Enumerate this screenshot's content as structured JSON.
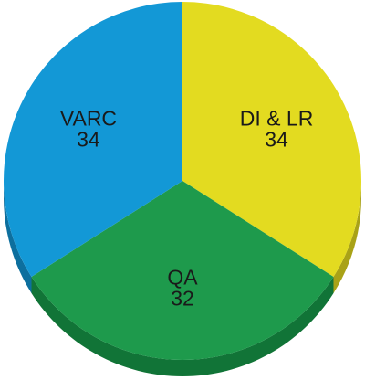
{
  "chart_data": {
    "type": "pie",
    "style": "3d",
    "title": "",
    "start_angle_deg": 0,
    "direction": "clockwise",
    "slices": [
      {
        "label": "DI & LR",
        "value": 34,
        "value_text": "34",
        "color": "#e3db20",
        "side_color": "#a9a217"
      },
      {
        "label": "QA",
        "value": 32,
        "value_text": "32",
        "color": "#1e9a4c",
        "side_color": "#117437"
      },
      {
        "label": "VARC",
        "value": 34,
        "value_text": "34",
        "color": "#1398d6",
        "side_color": "#0d6f9e"
      }
    ]
  }
}
